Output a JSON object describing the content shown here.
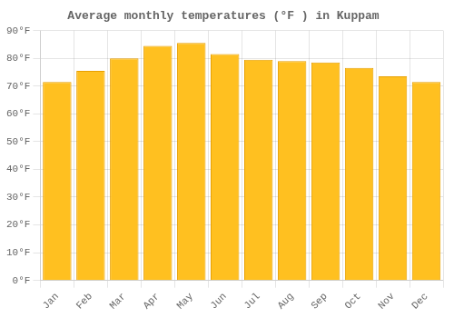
{
  "chart_data": {
    "type": "bar",
    "title": "Average monthly temperatures (°F ) in Kuppam",
    "categories": [
      "Jan",
      "Feb",
      "Mar",
      "Apr",
      "May",
      "Jun",
      "Jul",
      "Aug",
      "Sep",
      "Oct",
      "Nov",
      "Dec"
    ],
    "values": [
      71.5,
      75.5,
      80.0,
      84.5,
      85.5,
      81.5,
      79.5,
      79.0,
      78.5,
      76.5,
      73.5,
      71.5
    ],
    "color": "#FFC020",
    "ylim": [
      0,
      90
    ],
    "yticks": [
      {
        "value": 0,
        "label": "0°F"
      },
      {
        "value": 10,
        "label": "10°F"
      },
      {
        "value": 20,
        "label": "20°F"
      },
      {
        "value": 30,
        "label": "30°F"
      },
      {
        "value": 40,
        "label": "40°F"
      },
      {
        "value": 50,
        "label": "50°F"
      },
      {
        "value": 60,
        "label": "60°F"
      },
      {
        "value": 70,
        "label": "70°F"
      },
      {
        "value": 80,
        "label": "80°F"
      },
      {
        "value": 90,
        "label": "90°F"
      }
    ],
    "grid": true
  }
}
